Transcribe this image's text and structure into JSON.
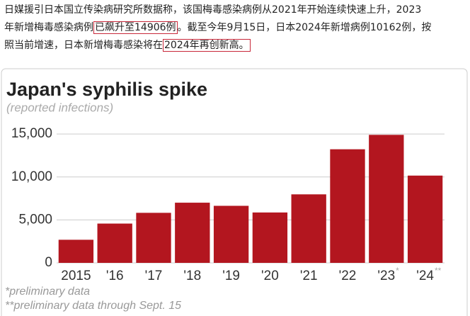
{
  "article": {
    "lines": [
      [
        {
          "text": "日媒援引日本国立传染病研究所数据称，该国梅毒感染病例从2021年开始连续快速上升，2023"
        }
      ],
      [
        {
          "text": "年新增梅毒感染病例"
        },
        {
          "text": "已飙升至14906例",
          "boxed": true
        },
        {
          "text": "。截至今年9月15日，日本2024年新增病例10162例，按"
        }
      ],
      [
        {
          "text": "照当前增速，日本新增梅毒感染将在"
        },
        {
          "text": "2024年再创新高。",
          "boxed": true
        }
      ]
    ]
  },
  "chart_data": {
    "type": "bar",
    "title": "Japan's syphilis spike",
    "subtitle": "(reported infections)",
    "categories": [
      "2015",
      "'16",
      "'17",
      "'18",
      "'19",
      "'20",
      "'21",
      "'22",
      "'23",
      "'24"
    ],
    "category_notes": [
      null,
      null,
      null,
      null,
      null,
      null,
      null,
      null,
      "*",
      "**"
    ],
    "values": [
      2690,
      4575,
      5826,
      7007,
      6642,
      5867,
      7978,
      13228,
      14906,
      10162
    ],
    "color": "#b3161f",
    "ylim": [
      0,
      16500
    ],
    "yticks": [
      0,
      {
        "value": 5000,
        "label": "5,000"
      },
      {
        "value": 10000,
        "label": "10,000"
      },
      {
        "value": 15000,
        "label": "15,000"
      }
    ],
    "grid": true,
    "footnotes": [
      "*preliminary data",
      "**preliminary data through Sept. 15"
    ]
  }
}
